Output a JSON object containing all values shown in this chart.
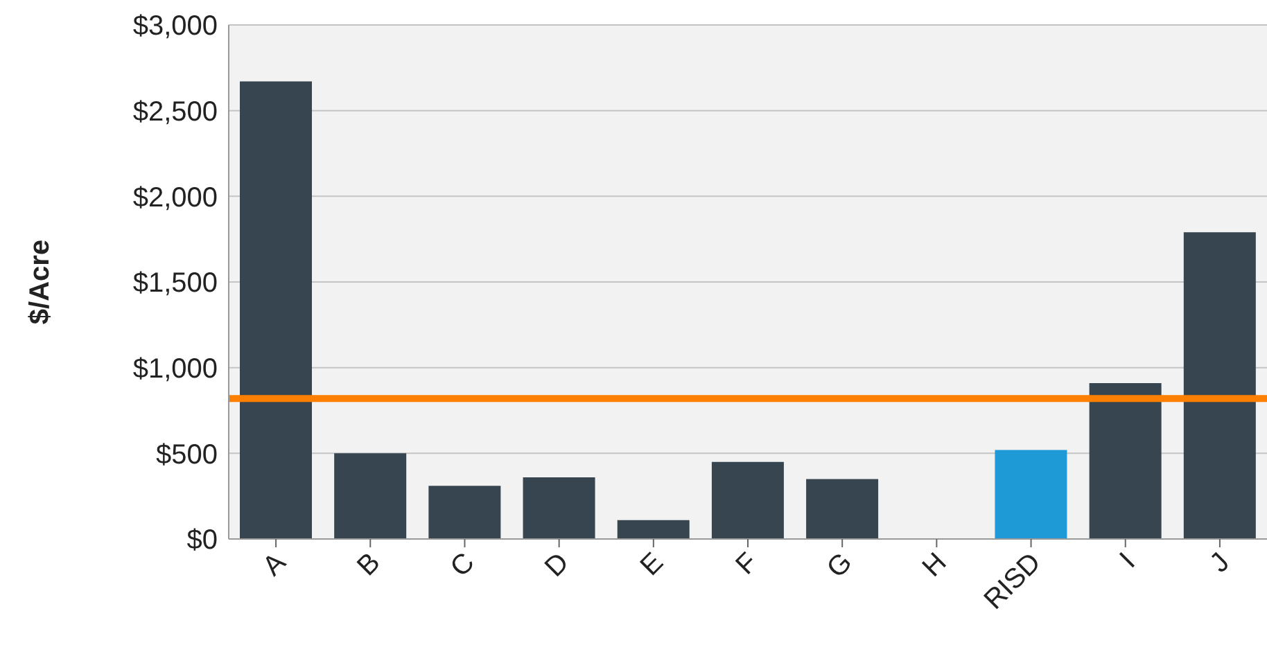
{
  "chart_data": {
    "type": "bar",
    "ylabel": "$/Acre",
    "categories": [
      "A",
      "B",
      "C",
      "D",
      "E",
      "F",
      "G",
      "H",
      "RISD",
      "I",
      "J"
    ],
    "values": [
      2670,
      500,
      310,
      360,
      110,
      450,
      350,
      null,
      520,
      910,
      1790
    ],
    "colors": [
      "#36454f",
      "#36454f",
      "#36454f",
      "#36454f",
      "#36454f",
      "#36454f",
      "#36454f",
      "#36454f",
      "#1e9ad6",
      "#36454f",
      "#36454f"
    ],
    "ylim": [
      0,
      3000
    ],
    "yticks": [
      {
        "value": 0,
        "label": "$0"
      },
      {
        "value": 500,
        "label": "$500"
      },
      {
        "value": 1000,
        "label": "$1,000"
      },
      {
        "value": 1500,
        "label": "$1,500"
      },
      {
        "value": 2000,
        "label": "$2,000"
      },
      {
        "value": 2500,
        "label": "$2,500"
      },
      {
        "value": 3000,
        "label": "$3,000"
      }
    ],
    "ref_lines": [
      {
        "axis": "y",
        "value": 820,
        "color": "#ff7f00"
      }
    ],
    "grid": "y"
  }
}
